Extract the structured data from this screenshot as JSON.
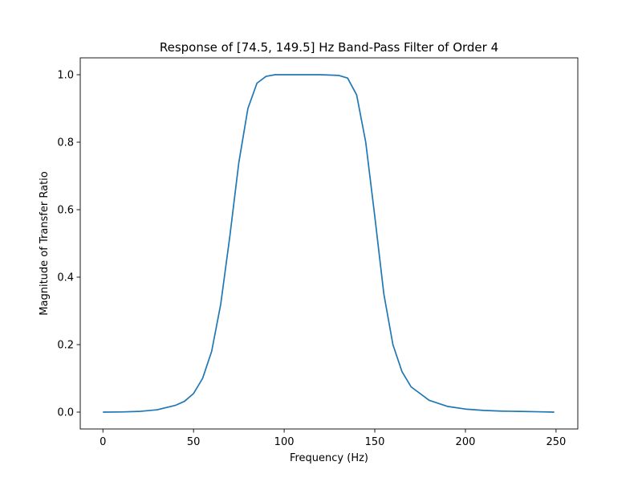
{
  "chart_data": {
    "type": "line",
    "title": "Response of [74.5, 149.5] Hz Band-Pass Filter of Order 4",
    "xlabel": "Frequency (Hz)",
    "ylabel": "Magnitude of Transfer Ratio",
    "xlim": [
      -12.5,
      262
    ],
    "ylim": [
      -0.05,
      1.05
    ],
    "xticks": [
      0,
      50,
      100,
      150,
      200,
      250
    ],
    "yticks": [
      0.0,
      0.2,
      0.4,
      0.6,
      0.8,
      1.0
    ],
    "xtick_labels": [
      "0",
      "50",
      "100",
      "150",
      "200",
      "250"
    ],
    "ytick_labels": [
      "0.0",
      "0.2",
      "0.4",
      "0.6",
      "0.8",
      "1.0"
    ],
    "grid": false,
    "line_color": "#1f77b4",
    "series": [
      {
        "x": [
          0,
          10,
          20,
          30,
          40,
          45,
          50,
          55,
          60,
          65,
          70,
          75,
          80,
          85,
          90,
          95,
          100,
          110,
          120,
          130,
          135,
          140,
          145,
          150,
          155,
          160,
          165,
          170,
          180,
          190,
          200,
          210,
          220,
          230,
          240,
          249
        ],
        "values": [
          0.0,
          0.0005,
          0.002,
          0.007,
          0.02,
          0.032,
          0.055,
          0.1,
          0.18,
          0.32,
          0.52,
          0.74,
          0.9,
          0.975,
          0.995,
          1.0,
          1.0,
          1.0,
          1.0,
          0.998,
          0.99,
          0.94,
          0.8,
          0.58,
          0.35,
          0.2,
          0.12,
          0.075,
          0.035,
          0.017,
          0.009,
          0.005,
          0.003,
          0.002,
          0.001,
          0.0
        ]
      }
    ]
  }
}
